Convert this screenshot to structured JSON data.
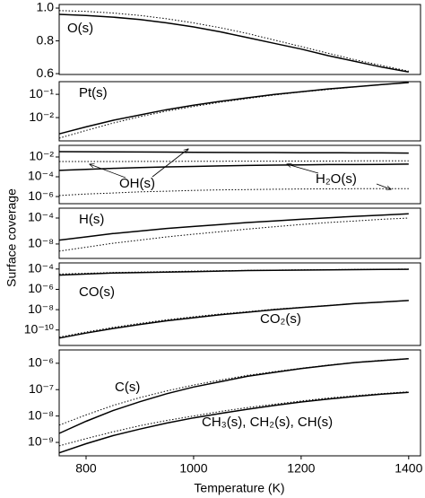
{
  "axes": {
    "xlabel": "Temperature (K)",
    "ylabel": "Surface coverage",
    "x": [
      750,
      800,
      850,
      900,
      950,
      1000,
      1050,
      1100,
      1150,
      1200,
      1250,
      1300,
      1350,
      1400
    ],
    "xlim": [
      750,
      1422
    ],
    "xticks": [
      800,
      1000,
      1200,
      1400
    ]
  },
  "chart_data": [
    {
      "type": "line",
      "log": false,
      "ylim": [
        0.595,
        1.022
      ],
      "yticks": [
        {
          "value": 0.6,
          "label": "0.6"
        },
        {
          "value": 0.8,
          "label": "0.8"
        },
        {
          "value": 1.0,
          "label": "1.0"
        }
      ],
      "annotations": [
        "O(s)"
      ],
      "series": [
        {
          "style": "solid",
          "color": "#000000",
          "values": [
            0.962,
            0.955,
            0.945,
            0.93,
            0.91,
            0.885,
            0.855,
            0.82,
            0.785,
            0.75,
            0.71,
            0.675,
            0.64,
            0.61
          ]
        },
        {
          "style": "dotted",
          "color": "#000000",
          "values": [
            0.985,
            0.98,
            0.97,
            0.955,
            0.935,
            0.91,
            0.88,
            0.845,
            0.805,
            0.765,
            0.725,
            0.685,
            0.65,
            0.615
          ]
        }
      ]
    },
    {
      "type": "line",
      "log": true,
      "ylim": [
        0.001,
        0.35
      ],
      "yticks": [
        {
          "value": 0.01,
          "label": "10⁻²"
        },
        {
          "value": 0.1,
          "label": "10⁻¹"
        }
      ],
      "annotations": [
        "Pt(s)"
      ],
      "series": [
        {
          "style": "solid",
          "color": "#000000",
          "values": [
            0.002,
            0.004,
            0.0076,
            0.013,
            0.022,
            0.034,
            0.05,
            0.071,
            0.098,
            0.13,
            0.17,
            0.21,
            0.26,
            0.32
          ]
        },
        {
          "style": "dotted",
          "color": "#000000",
          "values": [
            0.0013,
            0.0028,
            0.0058,
            0.011,
            0.019,
            0.03,
            0.046,
            0.066,
            0.093,
            0.126,
            0.16,
            0.21,
            0.26,
            0.32
          ]
        }
      ]
    },
    {
      "type": "line",
      "log": true,
      "ylim": [
        1.9e-07,
        0.15
      ],
      "yticks": [
        {
          "value": 0.01,
          "label": "10⁻²"
        },
        {
          "value": 0.0001,
          "label": "10⁻⁴"
        },
        {
          "value": 1e-06,
          "label": "10⁻⁶"
        }
      ],
      "annotations": [
        "OH(s)",
        "H₂O(s)"
      ],
      "series": [
        {
          "style": "solid",
          "color": "#000000",
          "values": [
            0.035,
            0.034,
            0.033,
            0.032,
            0.031,
            0.03,
            0.029,
            0.028,
            0.028,
            0.027,
            0.027,
            0.026,
            0.026,
            0.025
          ]
        },
        {
          "style": "dotted",
          "color": "#000000",
          "values": [
            0.0035,
            0.0035,
            0.0035,
            0.0036,
            0.0036,
            0.0037,
            0.0037,
            0.0038,
            0.0038,
            0.0039,
            0.0039,
            0.004,
            0.004,
            0.004
          ]
        },
        {
          "style": "solid",
          "color": "#000000",
          "values": [
            0.00044,
            0.00056,
            0.00071,
            0.00085,
            0.001,
            0.0011,
            0.00126,
            0.0014,
            0.0015,
            0.0016,
            0.0017,
            0.0017,
            0.0018,
            0.0019
          ]
        },
        {
          "style": "dotted",
          "color": "#000000",
          "values": [
            1.26e-06,
            1.8e-06,
            2.3e-06,
            3e-06,
            3.5e-06,
            4.2e-06,
            4.7e-06,
            5.1e-06,
            5.5e-06,
            5.8e-06,
            6e-06,
            6.2e-06,
            6.3e-06,
            6.3e-06
          ]
        }
      ]
    },
    {
      "type": "line",
      "log": true,
      "ylim": [
        6e-11,
        0.0033
      ],
      "yticks": [
        {
          "value": 0.0001,
          "label": "10⁻⁴"
        },
        {
          "value": 1e-08,
          "label": "10⁻⁸"
        }
      ],
      "annotations": [
        "H(s)"
      ],
      "series": [
        {
          "style": "solid",
          "color": "#000000",
          "values": [
            4e-08,
            1.26e-07,
            4e-07,
            1e-06,
            2.5e-06,
            5e-06,
            1e-05,
            2e-05,
            3.5e-05,
            6.3e-05,
            0.00011,
            0.00018,
            0.00028,
            0.00045
          ]
        },
        {
          "style": "dotted",
          "color": "#000000",
          "values": [
            8e-10,
            3.2e-09,
            1.3e-08,
            4e-08,
            1.26e-07,
            3.2e-07,
            8e-07,
            2e-06,
            4.5e-06,
            1e-05,
            2e-05,
            3.5e-05,
            6.3e-05,
            0.0001
          ]
        }
      ]
    },
    {
      "type": "line",
      "log": true,
      "ylim": [
        3e-12,
        0.0004
      ],
      "yticks": [
        {
          "value": 0.0001,
          "label": "10⁻⁴"
        },
        {
          "value": 1e-06,
          "label": "10⁻⁶"
        },
        {
          "value": 1e-08,
          "label": "10⁻⁸"
        },
        {
          "value": 1e-10,
          "label": "10⁻¹⁰"
        }
      ],
      "annotations": [
        "CO(s)",
        "CO₂(s)"
      ],
      "series": [
        {
          "style": "solid",
          "color": "#000000",
          "values": [
            2.5e-05,
            3.2e-05,
            4e-05,
            4.5e-05,
            5e-05,
            5.6e-05,
            6.3e-05,
            7.1e-05,
            7.6e-05,
            7.9e-05,
            8.3e-05,
            8.7e-05,
            9.1e-05,
            9.5e-05
          ]
        },
        {
          "style": "dotted",
          "color": "#000000",
          "values": [
            3.2e-05,
            3.8e-05,
            4.5e-05,
            5e-05,
            5.6e-05,
            6.3e-05,
            6.8e-05,
            7.4e-05,
            7.9e-05,
            8.3e-05,
            8.7e-05,
            9.1e-05,
            9.5e-05,
            0.0001
          ]
        },
        {
          "style": "solid",
          "color": "#000000",
          "values": [
            1.6e-11,
            5e-11,
            1.4e-10,
            3.5e-10,
            8e-10,
            1.6e-09,
            3.2e-09,
            5.6e-09,
            1e-08,
            1.6e-08,
            2.5e-08,
            4e-08,
            5.6e-08,
            8e-08
          ]
        },
        {
          "style": "dotted",
          "color": "#000000",
          "values": [
            2e-11,
            6.3e-11,
            1.8e-10,
            4.5e-10,
            1e-09,
            2e-09,
            3.8e-09,
            6.3e-09,
            1.1e-08,
            1.7e-08,
            2.6e-08,
            4e-08,
            5.6e-08,
            8e-08
          ]
        }
      ]
    },
    {
      "type": "line",
      "log": true,
      "ylim": [
        3.1e-10,
        3.2e-06
      ],
      "yticks": [
        {
          "value": 1e-06,
          "label": "10⁻⁶"
        },
        {
          "value": 1e-07,
          "label": "10⁻⁷"
        },
        {
          "value": 1e-08,
          "label": "10⁻⁸"
        },
        {
          "value": 1e-09,
          "label": "10⁻⁹"
        }
      ],
      "annotations": [
        "C(s)",
        "CH₃(s), CH₂(s), CH(s)"
      ],
      "series": [
        {
          "style": "solid",
          "color": "#000000",
          "values": [
            2.2e-09,
            6.3e-09,
            1.6e-08,
            3.5e-08,
            7e-08,
            1.26e-07,
            2e-07,
            3.2e-07,
            4.5e-07,
            6.3e-07,
            8.3e-07,
            1.07e-06,
            1.26e-06,
            1.5e-06
          ]
        },
        {
          "style": "dotted",
          "color": "#000000",
          "values": [
            4.5e-09,
            1.1e-08,
            2.5e-08,
            5e-08,
            8.9e-08,
            1.5e-07,
            2.3e-07,
            3.5e-07,
            4.8e-07,
            6.5e-07,
            8.5e-07,
            1.07e-06,
            1.3e-06,
            1.5e-06
          ]
        },
        {
          "style": "solid",
          "color": "#000000",
          "values": [
            4e-10,
            8.9e-10,
            1.8e-09,
            3.2e-09,
            5.4e-09,
            8.5e-09,
            1.26e-08,
            1.8e-08,
            2.5e-08,
            3.4e-08,
            4.4e-08,
            5.5e-08,
            6.8e-08,
            7.9e-08
          ]
        },
        {
          "style": "dotted",
          "color": "#000000",
          "values": [
            7.4e-10,
            1.4e-09,
            2.5e-09,
            4.3e-09,
            6.8e-09,
            1e-08,
            1.5e-08,
            2.1e-08,
            2.8e-08,
            3.7e-08,
            4.8e-08,
            5.9e-08,
            7.1e-08,
            8.3e-08
          ]
        }
      ]
    }
  ]
}
